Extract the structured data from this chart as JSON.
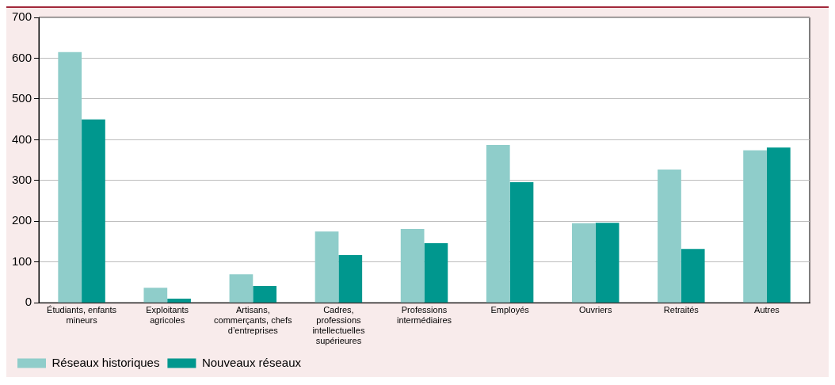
{
  "chart_data": {
    "type": "bar",
    "categories": [
      "Étudiants, enfants mineurs",
      "Exploitants agricoles",
      "Artisans, commerçants, chefs d’entreprises",
      "Cadres, professions intellectuelles supérieures",
      "Professions intermédiaires",
      "Employés",
      "Ouvriers",
      "Retraités",
      "Autres"
    ],
    "series": [
      {
        "name": "Réseaux historiques",
        "color": "#8fcdca",
        "values": [
          615,
          37,
          70,
          175,
          181,
          387,
          195,
          327,
          374
        ]
      },
      {
        "name": "Nouveaux réseaux",
        "color": "#00978e",
        "values": [
          450,
          10,
          41,
          117,
          146,
          296,
          196,
          132,
          381
        ]
      }
    ],
    "ylim": [
      0,
      700
    ],
    "yticks": [
      0,
      100,
      200,
      300,
      400,
      500,
      600,
      700
    ],
    "grid": "y",
    "legend": "bottom left"
  }
}
